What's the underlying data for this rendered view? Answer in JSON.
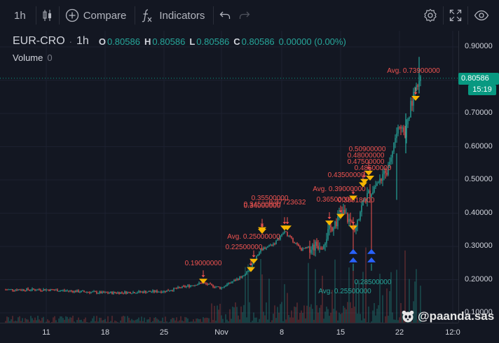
{
  "toolbar": {
    "interval": "1h",
    "compare_label": "Compare",
    "indicators_label": "Indicators"
  },
  "legend": {
    "symbol": "EUR-CRO",
    "interval": "1h",
    "open_key": "O",
    "open": "0.80586",
    "high_key": "H",
    "high": "0.80586",
    "low_key": "L",
    "low": "0.80586",
    "close_key": "C",
    "close": "0.80586",
    "change": "0.00000 (0.00%)"
  },
  "volume": {
    "label": "Volume",
    "value": "0"
  },
  "price_axis": {
    "ticks": [
      "0.90000",
      "0.80000",
      "0.70000",
      "0.60000",
      "0.50000",
      "0.40000",
      "0.30000",
      "0.20000",
      "0.10000"
    ],
    "current_price": "0.80586",
    "countdown": "15:19"
  },
  "time_axis": {
    "ticks": [
      "11",
      "18",
      "25",
      "Nov",
      "8",
      "15",
      "22",
      "12:0"
    ]
  },
  "watermark": {
    "text": "@paanda.sas"
  },
  "chart_data": {
    "type": "candlestick",
    "symbol": "EUR-CRO",
    "ylim": [
      0.1,
      0.9
    ],
    "close_series": [
      [
        "Oct 4",
        0.17
      ],
      [
        "Oct 11",
        0.17
      ],
      [
        "Oct 18",
        0.16
      ],
      [
        "Oct 25",
        0.165
      ],
      [
        "Oct 28",
        0.19
      ],
      [
        "Oct 31",
        0.175
      ],
      [
        "Nov 2",
        0.215
      ],
      [
        "Nov 4",
        0.29
      ],
      [
        "Nov 6",
        0.31
      ],
      [
        "Nov 8",
        0.345
      ],
      [
        "Nov 10",
        0.29
      ],
      [
        "Nov 12",
        0.31
      ],
      [
        "Nov 14",
        0.37
      ],
      [
        "Nov 16",
        0.4
      ],
      [
        "Nov 17",
        0.36
      ],
      [
        "Nov 18",
        0.44
      ],
      [
        "Nov 19",
        0.49
      ],
      [
        "Nov 20",
        0.52
      ],
      [
        "Nov 21",
        0.66
      ],
      [
        "Nov 22",
        0.64
      ],
      [
        "Nov 23",
        0.78
      ],
      [
        "Nov 24",
        0.806
      ]
    ],
    "buy_annotations": [
      {
        "label": "0.19000000",
        "price": 0.19
      },
      {
        "label": "0.22500000",
        "price": 0.225
      },
      {
        "label": "Avg. 0.25000000",
        "price": 0.25
      },
      {
        "label": "0.34000000",
        "price": 0.34
      },
      {
        "label": "0.34500000",
        "price": 0.345
      },
      {
        "label": "0.35500000",
        "price": 0.355
      },
      {
        "label": "0.37723632",
        "price": 0.377
      },
      {
        "label": "0.36500000",
        "price": 0.365
      },
      {
        "label": "Avg. 0.39000000",
        "price": 0.39
      },
      {
        "label": "0.38018000",
        "price": 0.38
      },
      {
        "label": "0.43500000",
        "price": 0.435
      },
      {
        "label": "0.47500000",
        "price": 0.475
      },
      {
        "label": "0.48000000",
        "price": 0.48
      },
      {
        "label": "0.48500000",
        "price": 0.485
      },
      {
        "label": "0.50900000",
        "price": 0.509
      },
      {
        "label": "Avg. 0.73900000",
        "price": 0.739
      }
    ],
    "sell_annotations": [
      {
        "label": "Avg. 0.25500000",
        "price": 0.255
      },
      {
        "label": "0.28500000",
        "price": 0.285
      }
    ]
  }
}
